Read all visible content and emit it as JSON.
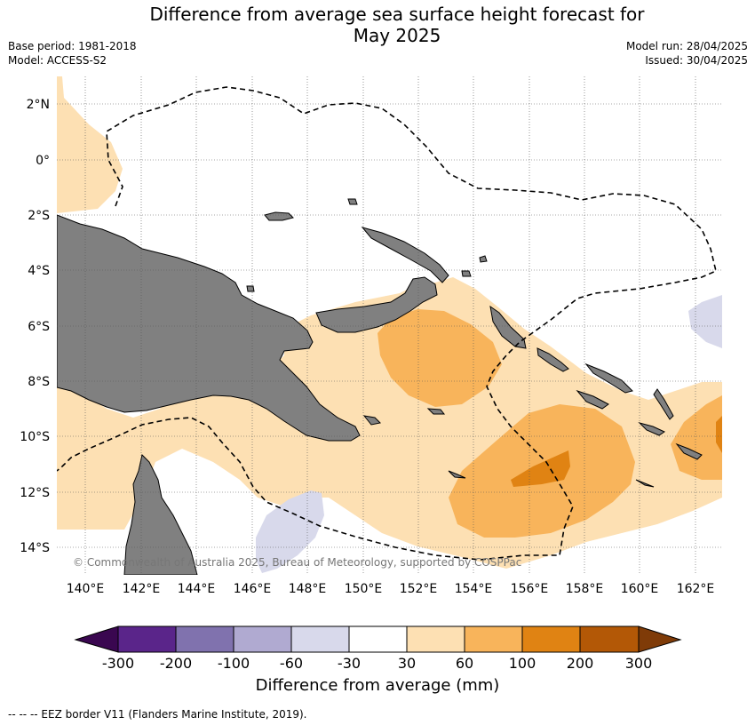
{
  "title": {
    "line1": "Difference from average sea surface height forecast for",
    "line2": "May 2025"
  },
  "meta": {
    "base_period": "Base period: 1981-2018",
    "model": "Model: ACCESS-S2",
    "model_run": "Model run: 28/04/2025",
    "issued": "Issued: 30/04/2025"
  },
  "map": {
    "lat_labels": [
      "2°N",
      "0°",
      "2°S",
      "4°S",
      "6°S",
      "8°S",
      "10°S",
      "12°S",
      "14°S"
    ],
    "lon_labels": [
      "140°E",
      "142°E",
      "144°E",
      "146°E",
      "148°E",
      "150°E",
      "152°E",
      "154°E",
      "156°E",
      "158°E",
      "160°E",
      "162°E"
    ],
    "copyright": "© Commonwealth of Australia 2025, Bureau of Meteorology, supported by COSPPac",
    "colors": {
      "land": "#808080",
      "c30_60": "#fde0b3",
      "c60_100": "#f8b45b",
      "c100_200": "#e08313",
      "c_neg60_30": "#d8d9eb",
      "eez": "#000000"
    }
  },
  "colorbar": {
    "ticks": [
      "-300",
      "-200",
      "-100",
      "-60",
      "-30",
      "30",
      "60",
      "100",
      "200",
      "300"
    ],
    "colors": [
      "#3a0750",
      "#5a258a",
      "#8072ae",
      "#b0aad1",
      "#d8d9eb",
      "#ffffff",
      "#fde0b3",
      "#f8b45b",
      "#e08313",
      "#b35806",
      "#7f3b08"
    ],
    "title": "Difference from average (mm)"
  },
  "footer": "--  --  -- EEZ border V11 (Flanders Marine Institute, 2019)."
}
